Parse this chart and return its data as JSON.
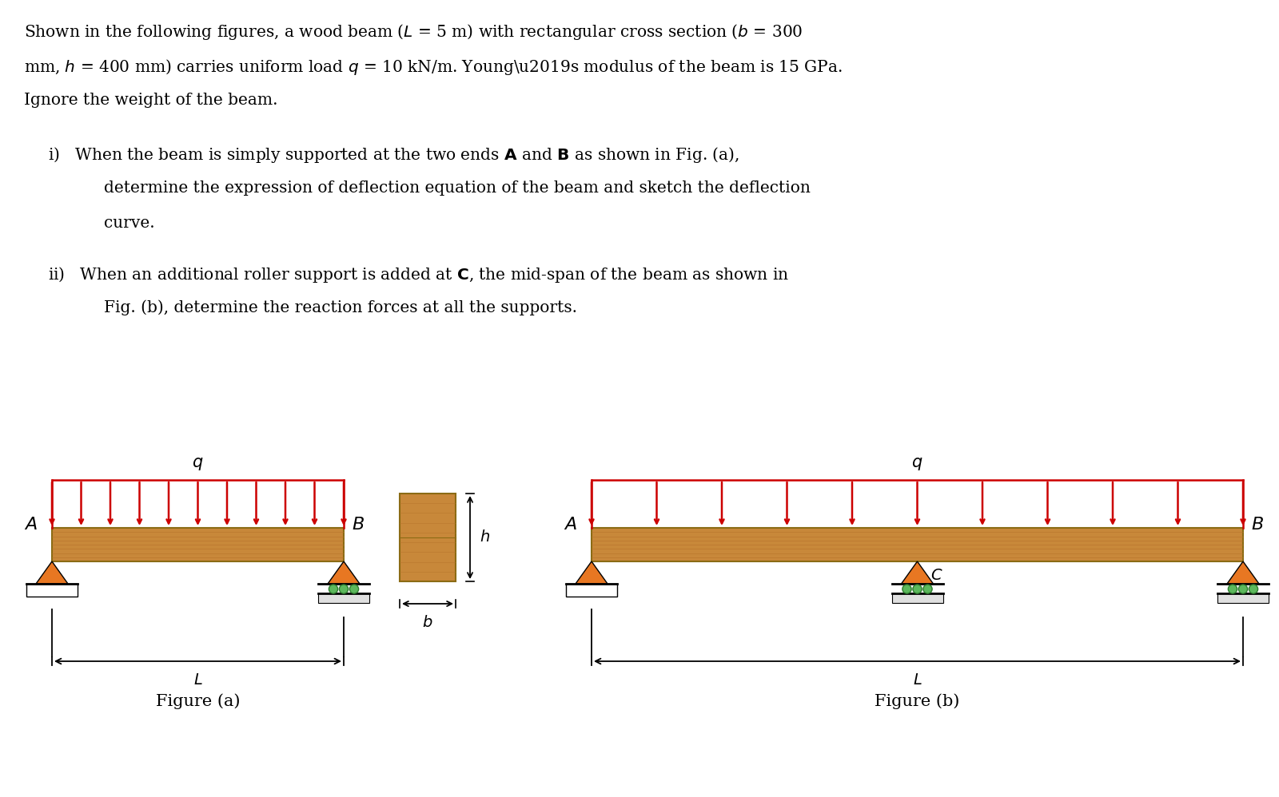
{
  "bg_color": "#ffffff",
  "beam_color_face": "#C8883A",
  "beam_color_edge": "#8B6B14",
  "grain_color": "#B5722A",
  "load_color": "#CC0000",
  "triangle_color": "#E87722",
  "roller_color": "#5CB85C",
  "ground_fill": "#e0e0e0",
  "black": "#000000",
  "darkgreen": "#2d7a2d",
  "label_q": "$q$",
  "label_A": "$A$",
  "label_B": "$B$",
  "label_C": "$C$",
  "label_L": "$L$",
  "label_h": "$h$",
  "label_b": "$b$",
  "fig_a_label": "Figure (a)",
  "fig_b_label": "Figure (b)"
}
